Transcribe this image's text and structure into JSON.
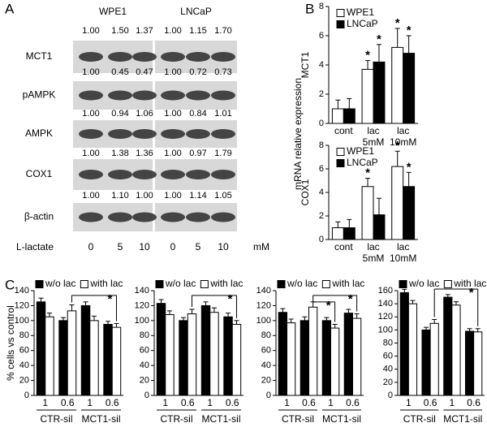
{
  "panel_labels": [
    "A",
    "B",
    "C"
  ],
  "blot": {
    "columns": [
      "WPE1",
      "LNCaP"
    ],
    "rows": [
      {
        "name": "MCT1",
        "values": [
          "1.00",
          "1.50",
          "1.37",
          "1.00",
          "1.15",
          "1.70"
        ]
      },
      {
        "name": "pAMPK",
        "values": [
          "1.00",
          "0.45",
          "0.47",
          "1.00",
          "0.72",
          "0.73"
        ]
      },
      {
        "name": "AMPK",
        "values": [
          "1.00",
          "0.94",
          "1.06",
          "1.00",
          "0.84",
          "1.01"
        ]
      },
      {
        "name": "COX1",
        "values": [
          "1.00",
          "1.38",
          "1.36",
          "1.00",
          "0.97",
          "1.79"
        ]
      },
      {
        "name": "β-actin",
        "values": [
          "1.00",
          "1.10",
          "1.00",
          "1.00",
          "1.14",
          "1.05"
        ]
      }
    ],
    "treatment_label": "L-lactate",
    "lanes": [
      0,
      5,
      10,
      0,
      5,
      10
    ],
    "unit": "mM"
  },
  "shared_ylabel": "mRNA relative expression",
  "chart_data": [
    {
      "type": "bar",
      "ylabel": "MCT1",
      "categories": [
        [
          "cont"
        ],
        [
          "lac",
          "5mM"
        ],
        [
          "lac",
          "10mM"
        ]
      ],
      "ylim": [
        0,
        8
      ],
      "yticks": [
        0,
        2,
        4,
        6,
        8
      ],
      "legend": "upper left",
      "series": [
        {
          "name": "WPE1",
          "color": "#ffffff",
          "values": [
            1.0,
            3.7,
            5.2
          ],
          "errors": [
            0.6,
            0.6,
            1.3
          ],
          "significance": [
            null,
            "*",
            "*"
          ]
        },
        {
          "name": "LNCaP",
          "color": "#000000",
          "values": [
            1.0,
            4.2,
            4.8
          ],
          "errors": [
            0.7,
            1.2,
            1.2
          ],
          "significance": [
            null,
            "*",
            "*"
          ]
        }
      ]
    },
    {
      "type": "bar",
      "ylabel": "COX1",
      "categories": [
        [
          "cont"
        ],
        [
          "lac",
          "5mM"
        ],
        [
          "lac",
          "10mM"
        ]
      ],
      "ylim": [
        0,
        8
      ],
      "yticks": [
        0,
        2,
        4,
        6,
        8
      ],
      "legend": "upper left",
      "series": [
        {
          "name": "WPE1",
          "color": "#ffffff",
          "values": [
            1.0,
            4.5,
            6.2
          ],
          "errors": [
            0.5,
            0.7,
            1.3
          ],
          "significance": [
            null,
            "*",
            "*"
          ]
        },
        {
          "name": "LNCaP",
          "color": "#000000",
          "values": [
            1.0,
            2.1,
            4.5
          ],
          "errors": [
            0.7,
            1.4,
            1.2
          ],
          "significance": [
            null,
            null,
            "*"
          ]
        }
      ]
    },
    {
      "type": "bar",
      "ylabel": "% cells vs control",
      "groups": [
        {
          "name": "CTR-sil",
          "categories": [
            "1",
            "0.6"
          ]
        },
        {
          "name": "MCT1-sil",
          "categories": [
            "1",
            "0.6"
          ]
        }
      ],
      "ylim": [
        0,
        140
      ],
      "yticks": [
        0,
        20,
        40,
        60,
        80,
        100,
        120,
        140
      ],
      "legend": "top",
      "series": [
        {
          "name": "w/o lac",
          "color": "#000000",
          "values": [
            125,
            100,
            120,
            95
          ],
          "errors": [
            5,
            4,
            5,
            4
          ]
        },
        {
          "name": "with lac",
          "color": "#ffffff",
          "values": [
            105,
            113,
            100,
            91
          ],
          "errors": [
            5,
            8,
            6,
            5
          ]
        }
      ],
      "brackets": [
        {
          "from": 1,
          "to": 3,
          "text": "*"
        }
      ]
    },
    {
      "type": "bar",
      "groups": [
        {
          "name": "CTR-sil",
          "categories": [
            "1",
            "0.6"
          ]
        },
        {
          "name": "MCT1-sil",
          "categories": [
            "1",
            "0.6"
          ]
        }
      ],
      "ylim": [
        0,
        140
      ],
      "yticks": [
        0,
        20,
        40,
        60,
        80,
        100,
        120,
        140
      ],
      "legend": "top",
      "series": [
        {
          "name": "w/o lac",
          "color": "#000000",
          "values": [
            123,
            100,
            120,
            105
          ],
          "errors": [
            5,
            4,
            5,
            5
          ]
        },
        {
          "name": "with lac",
          "color": "#ffffff",
          "values": [
            108,
            109,
            111,
            95
          ],
          "errors": [
            5,
            6,
            6,
            5
          ]
        }
      ],
      "brackets": [
        {
          "from": 1,
          "to": 3,
          "text": "*"
        }
      ]
    },
    {
      "type": "bar",
      "groups": [
        {
          "name": "CTR-sil",
          "categories": [
            "1",
            "0.6"
          ]
        },
        {
          "name": "MCT1-sil",
          "categories": [
            "1",
            "0.6"
          ]
        }
      ],
      "ylim": [
        0,
        140
      ],
      "yticks": [
        0,
        20,
        40,
        60,
        80,
        100,
        120,
        140
      ],
      "legend": "top",
      "series": [
        {
          "name": "w/o lac",
          "color": "#000000",
          "values": [
            111,
            100,
            100,
            110
          ],
          "errors": [
            5,
            5,
            4,
            5
          ]
        },
        {
          "name": "with lac",
          "color": "#ffffff",
          "values": [
            97,
            118,
            90,
            103
          ],
          "errors": [
            5,
            7,
            5,
            6
          ]
        }
      ],
      "brackets": [
        {
          "from": 1,
          "to": 2,
          "text": "*"
        },
        {
          "from": 1,
          "to": 3,
          "text": "*"
        }
      ]
    },
    {
      "type": "bar",
      "groups": [
        {
          "name": "CTR-sil",
          "categories": [
            "1",
            "0.6"
          ]
        },
        {
          "name": "MCT1-sil",
          "categories": [
            "1",
            "0.6"
          ]
        }
      ],
      "ylim": [
        0,
        160
      ],
      "yticks": [
        0,
        20,
        40,
        60,
        80,
        100,
        120,
        140,
        160
      ],
      "legend": "top",
      "series": [
        {
          "name": "w/o lac",
          "color": "#000000",
          "values": [
            157,
            100,
            150,
            98
          ],
          "errors": [
            5,
            4,
            4,
            4
          ]
        },
        {
          "name": "with lac",
          "color": "#ffffff",
          "values": [
            140,
            110,
            138,
            97
          ],
          "errors": [
            5,
            6,
            5,
            5
          ]
        }
      ],
      "brackets": [
        {
          "from": 1,
          "to": 3,
          "text": "*"
        }
      ]
    }
  ]
}
